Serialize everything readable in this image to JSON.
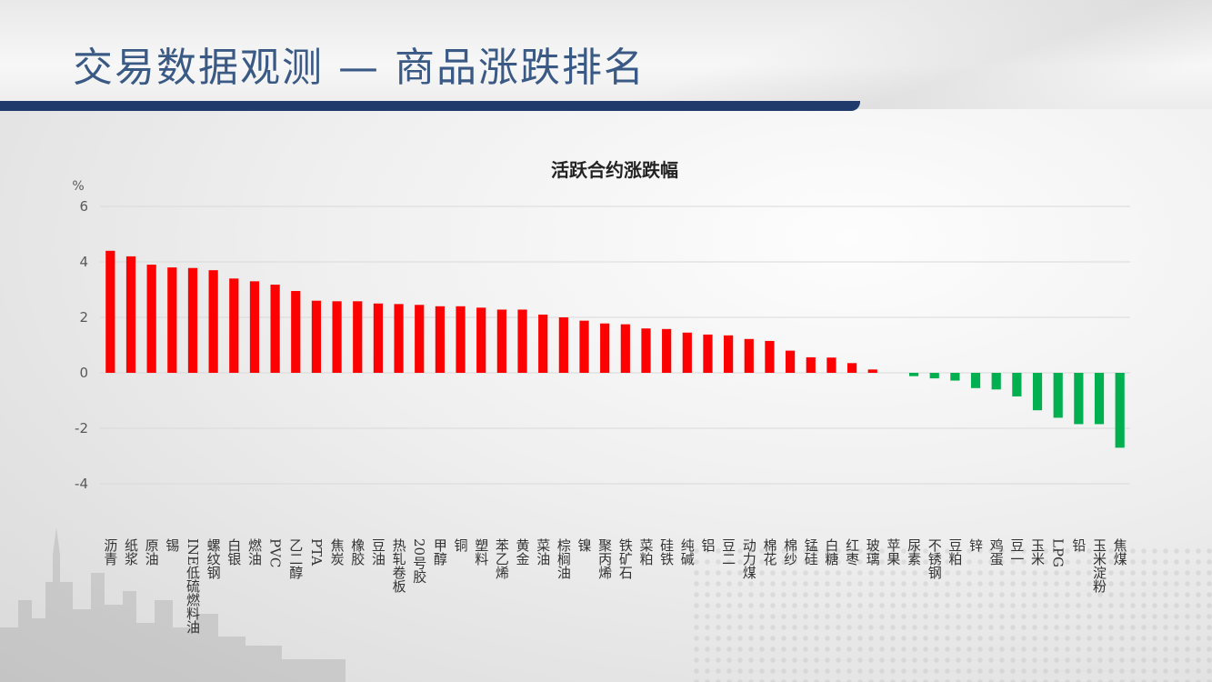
{
  "header": {
    "title": "交易数据观测 — 商品涨跌排名"
  },
  "colors": {
    "title": "#3a5a85",
    "title_bar": "#1f3a6b",
    "up": "#ff0000",
    "down": "#00b050",
    "grid": "#d9d9d9",
    "axis_text": "#595959"
  },
  "chart_data": {
    "type": "bar",
    "title": "活跃合约涨跌幅",
    "ylabel": "%",
    "ylim": [
      -4,
      6
    ],
    "yticks": [
      -4,
      -2,
      0,
      2,
      4,
      6
    ],
    "grid": true,
    "categories": [
      "沥青",
      "纸浆",
      "原油",
      "锡",
      "INE低硫燃料油",
      "螺纹钢",
      "白银",
      "燃油",
      "PVC",
      "乙二醇",
      "PTA",
      "焦炭",
      "橡胶",
      "豆油",
      "热轧卷板",
      "20号胶",
      "甲醇",
      "铜",
      "塑料",
      "苯乙烯",
      "黄金",
      "菜油",
      "棕榈油",
      "镍",
      "聚丙烯",
      "铁矿石",
      "菜粕",
      "硅铁",
      "纯碱",
      "铝",
      "豆二",
      "动力煤",
      "棉花",
      "棉纱",
      "锰硅",
      "白糖",
      "红枣",
      "玻璃",
      "苹果",
      "尿素",
      "不锈钢",
      "豆粕",
      "锌",
      "鸡蛋",
      "豆一",
      "玉米",
      "LPG",
      "铅",
      "玉米淀粉",
      "焦煤"
    ],
    "values": [
      4.4,
      4.2,
      3.9,
      3.8,
      3.78,
      3.7,
      3.4,
      3.3,
      3.18,
      2.95,
      2.6,
      2.58,
      2.58,
      2.5,
      2.48,
      2.45,
      2.4,
      2.4,
      2.35,
      2.28,
      2.28,
      2.1,
      2.0,
      1.88,
      1.78,
      1.75,
      1.6,
      1.58,
      1.45,
      1.38,
      1.35,
      1.22,
      1.15,
      0.8,
      0.56,
      0.55,
      0.35,
      0.12,
      0.0,
      -0.12,
      -0.2,
      -0.28,
      -0.55,
      -0.6,
      -0.85,
      -1.35,
      -1.62,
      -1.85,
      -1.85,
      -2.7
    ]
  }
}
